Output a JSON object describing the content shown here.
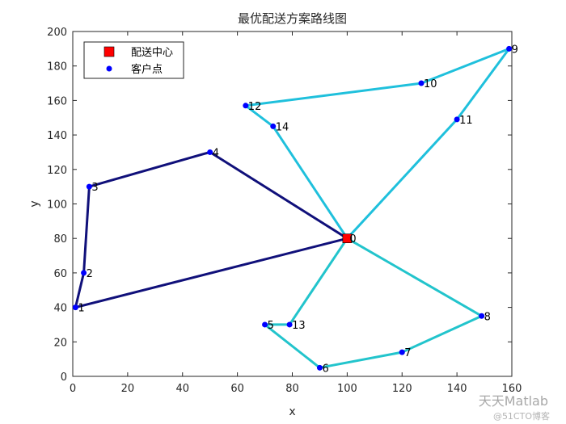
{
  "chart_data": {
    "type": "line",
    "title": "最优配送方案路线图",
    "xlabel": "x",
    "ylabel": "y",
    "xlim": [
      0,
      160
    ],
    "ylim": [
      0,
      200
    ],
    "xticks": [
      "0",
      "20",
      "40",
      "60",
      "80",
      "100",
      "120",
      "140",
      "160"
    ],
    "yticks": [
      "0",
      "20",
      "40",
      "60",
      "80",
      "100",
      "120",
      "140",
      "160",
      "180",
      "200"
    ],
    "legend": {
      "position": "top-left",
      "entries": [
        {
          "label": "配送中心",
          "marker": "square",
          "color": "#ff0000"
        },
        {
          "label": "客户点",
          "marker": "dot",
          "color": "#0000ff"
        }
      ]
    },
    "depot": {
      "label": "0",
      "x": 100,
      "y": 80
    },
    "points": [
      {
        "label": "0",
        "x": 100,
        "y": 80
      },
      {
        "label": "1",
        "x": 1,
        "y": 40
      },
      {
        "label": "2",
        "x": 4,
        "y": 60
      },
      {
        "label": "3",
        "x": 6,
        "y": 110
      },
      {
        "label": "4",
        "x": 50,
        "y": 130
      },
      {
        "label": "5",
        "x": 70,
        "y": 30
      },
      {
        "label": "6",
        "x": 90,
        "y": 5
      },
      {
        "label": "7",
        "x": 120,
        "y": 14
      },
      {
        "label": "8",
        "x": 149,
        "y": 35
      },
      {
        "label": "9",
        "x": 159,
        "y": 190
      },
      {
        "label": "10",
        "x": 127,
        "y": 170
      },
      {
        "label": "11",
        "x": 140,
        "y": 149
      },
      {
        "label": "12",
        "x": 63,
        "y": 157
      },
      {
        "label": "13",
        "x": 79,
        "y": 30
      },
      {
        "label": "14",
        "x": 73,
        "y": 145
      }
    ],
    "routes": [
      {
        "color": "#10107a",
        "path": [
          0,
          1,
          2,
          3,
          4,
          0
        ]
      },
      {
        "color": "#1fc0dc",
        "path": [
          0,
          11,
          9,
          10,
          12,
          14,
          0
        ]
      },
      {
        "color": "#22c4cc",
        "path": [
          0,
          13,
          5,
          6,
          7,
          8,
          0
        ]
      }
    ],
    "grid": false
  },
  "watermark": {
    "main": "天天Matlab",
    "sub": "@51CTO博客"
  }
}
